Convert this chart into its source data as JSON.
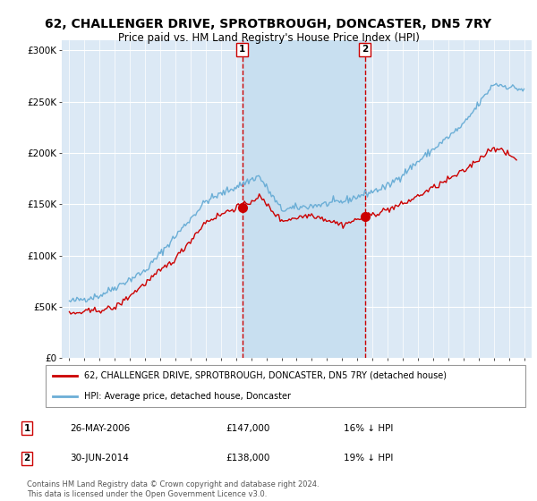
{
  "title": "62, CHALLENGER DRIVE, SPROTBROUGH, DONCASTER, DN5 7RY",
  "subtitle": "Price paid vs. HM Land Registry's House Price Index (HPI)",
  "legend_line1": "62, CHALLENGER DRIVE, SPROTBROUGH, DONCASTER, DN5 7RY (detached house)",
  "legend_line2": "HPI: Average price, detached house, Doncaster",
  "footnote_line1": "Contains HM Land Registry data © Crown copyright and database right 2024.",
  "footnote_line2": "This data is licensed under the Open Government Licence v3.0.",
  "sale1": {
    "label": "1",
    "date_str": "26-MAY-2006",
    "date_x": 2006.4,
    "price": 147000,
    "pct": "16% ↓ HPI"
  },
  "sale2": {
    "label": "2",
    "date_str": "30-JUN-2014",
    "date_x": 2014.5,
    "price": 138000,
    "pct": "19% ↓ HPI"
  },
  "ylim": [
    0,
    310000
  ],
  "xlim": [
    1994.5,
    2025.5
  ],
  "yticks": [
    0,
    50000,
    100000,
    150000,
    200000,
    250000,
    300000
  ],
  "ytick_labels": [
    "£0",
    "£50K",
    "£100K",
    "£150K",
    "£200K",
    "£250K",
    "£300K"
  ],
  "background_color": "#dce9f5",
  "highlight_color": "#c8dff0",
  "red_color": "#cc0000",
  "blue_color": "#6baed6",
  "grid_color": "#ffffff",
  "vline_color": "#cc0000",
  "seed": 42
}
